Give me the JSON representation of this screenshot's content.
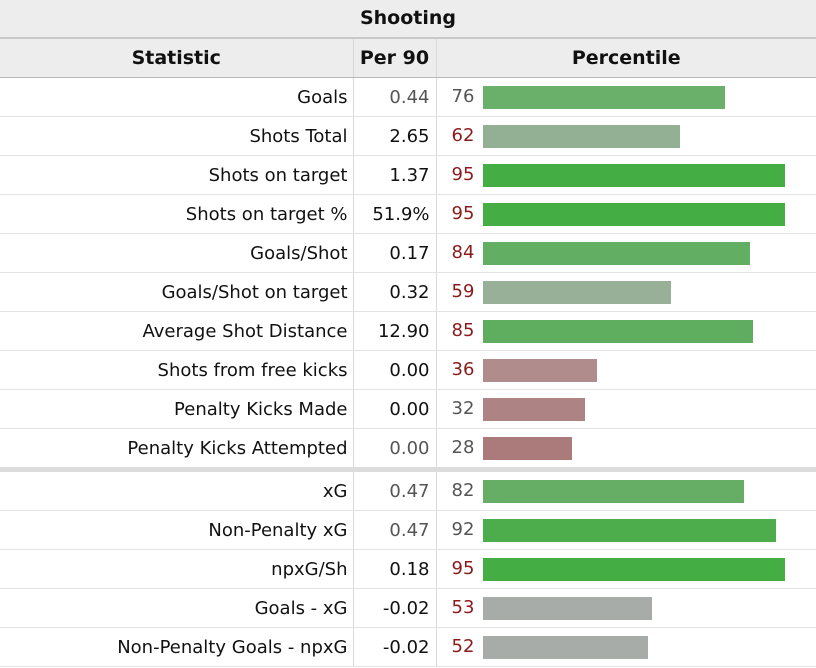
{
  "section_title": "Shooting",
  "headers": {
    "statistic": "Statistic",
    "per90": "Per 90",
    "percentile": "Percentile"
  },
  "chart_data": {
    "type": "bar",
    "title": "Shooting",
    "value_range": [
      0,
      100
    ],
    "groups": [
      {
        "rows": [
          {
            "label": "Goals",
            "per90": "0.44",
            "percentile": 76,
            "per90_color": "#555555",
            "pct_color": "#555555",
            "bar_color": "#6aaf6a"
          },
          {
            "label": "Shots Total",
            "per90": "2.65",
            "percentile": 62,
            "per90_color": "#111111",
            "pct_color": "#8b1a1a",
            "bar_color": "#94b094"
          },
          {
            "label": "Shots on target",
            "per90": "1.37",
            "percentile": 95,
            "per90_color": "#111111",
            "pct_color": "#8b1a1a",
            "bar_color": "#44ad44"
          },
          {
            "label": "Shots on target %",
            "per90": "51.9%",
            "percentile": 95,
            "per90_color": "#111111",
            "pct_color": "#8b1a1a",
            "bar_color": "#44ad44"
          },
          {
            "label": "Goals/Shot",
            "per90": "0.17",
            "percentile": 84,
            "per90_color": "#111111",
            "pct_color": "#8b1a1a",
            "bar_color": "#62ae62"
          },
          {
            "label": "Goals/Shot on target",
            "per90": "0.32",
            "percentile": 59,
            "per90_color": "#111111",
            "pct_color": "#8b1a1a",
            "bar_color": "#98b098"
          },
          {
            "label": "Average Shot Distance",
            "per90": "12.90",
            "percentile": 85,
            "per90_color": "#111111",
            "pct_color": "#8b1a1a",
            "bar_color": "#5fae5f"
          },
          {
            "label": "Shots from free kicks",
            "per90": "0.00",
            "percentile": 36,
            "per90_color": "#111111",
            "pct_color": "#8b1a1a",
            "bar_color": "#b08c8c"
          },
          {
            "label": "Penalty Kicks Made",
            "per90": "0.00",
            "percentile": 32,
            "per90_color": "#111111",
            "pct_color": "#555555",
            "bar_color": "#ad8383"
          },
          {
            "label": "Penalty Kicks Attempted",
            "per90": "0.00",
            "percentile": 28,
            "per90_color": "#555555",
            "pct_color": "#555555",
            "bar_color": "#ab7b7b"
          }
        ]
      },
      {
        "rows": [
          {
            "label": "xG",
            "per90": "0.47",
            "percentile": 82,
            "per90_color": "#555555",
            "pct_color": "#555555",
            "bar_color": "#66ae66"
          },
          {
            "label": "Non-Penalty xG",
            "per90": "0.47",
            "percentile": 92,
            "per90_color": "#555555",
            "pct_color": "#555555",
            "bar_color": "#4dad4d"
          },
          {
            "label": "npxG/Sh",
            "per90": "0.18",
            "percentile": 95,
            "per90_color": "#111111",
            "pct_color": "#8b1a1a",
            "bar_color": "#44ad44"
          },
          {
            "label": "Goals - xG",
            "per90": "-0.02",
            "percentile": 53,
            "per90_color": "#111111",
            "pct_color": "#8b1a1a",
            "bar_color": "#a8aca8"
          },
          {
            "label": "Non-Penalty Goals - npxG",
            "per90": "-0.02",
            "percentile": 52,
            "per90_color": "#111111",
            "pct_color": "#8b1a1a",
            "bar_color": "#a8aca8"
          }
        ]
      }
    ]
  }
}
